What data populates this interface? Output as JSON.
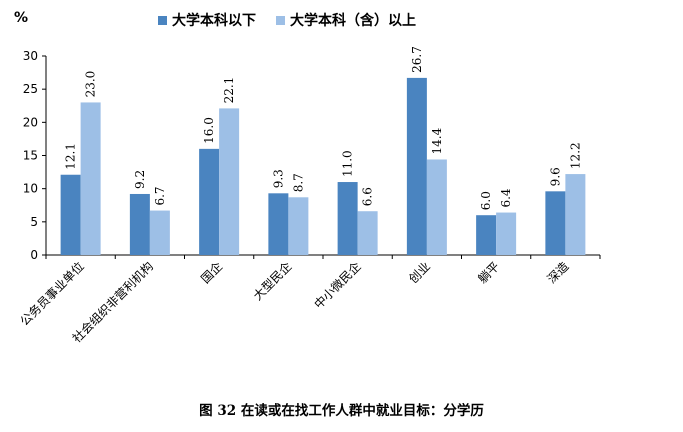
{
  "chart_data": {
    "type": "bar",
    "ylabel": "%",
    "ylim": [
      0,
      30
    ],
    "yticks": [
      0,
      5,
      10,
      15,
      20,
      25,
      30
    ],
    "categories": [
      "公务员事业单位",
      "社会组织非营利机构",
      "国企",
      "大型民企",
      "中小微民企",
      "创业",
      "躺平",
      "深造"
    ],
    "series": [
      {
        "name": "大学本科以下",
        "color": "#4a84c0",
        "values": [
          12.1,
          9.2,
          16.0,
          9.3,
          11.0,
          26.7,
          6.0,
          9.6
        ],
        "labels": [
          "12.1",
          "9.2",
          "16.0",
          "9.3",
          "11.0",
          "26.7",
          "6.0",
          "9.6"
        ]
      },
      {
        "name": "大学本科（含）以上",
        "color": "#9dbfe6",
        "values": [
          23.0,
          6.7,
          22.1,
          8.7,
          6.6,
          14.4,
          6.4,
          12.2
        ],
        "labels": [
          "23.0",
          "6.7",
          "22.1",
          "8.7",
          "6.6",
          "14.4",
          "6.4",
          "12.2"
        ]
      }
    ],
    "legend": "top-center",
    "grid": false
  },
  "caption": "图 32  在读或在找工作人群中就业目标：分学历"
}
